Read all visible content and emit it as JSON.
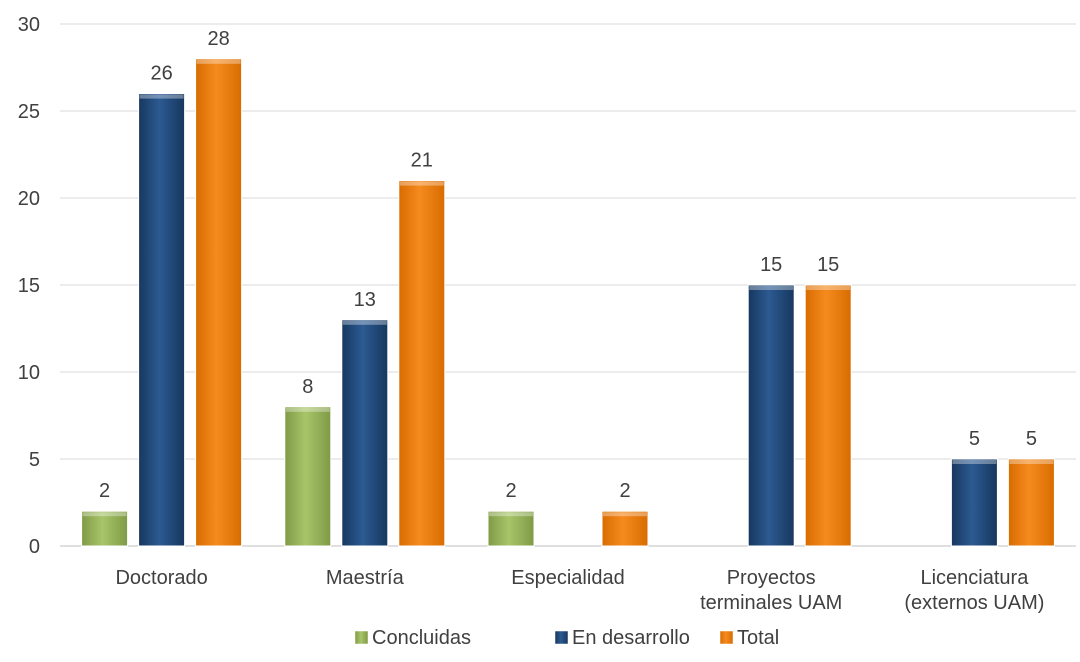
{
  "chart_data": {
    "type": "bar",
    "title": "",
    "xlabel": "",
    "ylabel": "",
    "ylim": [
      0,
      30
    ],
    "yticks": [
      0,
      5,
      10,
      15,
      20,
      25,
      30
    ],
    "grid": true,
    "legend_position": "bottom",
    "categories": [
      [
        "Doctorado"
      ],
      [
        "Maestría"
      ],
      [
        "Especialidad"
      ],
      [
        "Proyectos",
        "terminales UAM"
      ],
      [
        "Licenciatura",
        "(externos UAM)"
      ]
    ],
    "series": [
      {
        "name": "Concluidas",
        "color": "#9bbb59",
        "values": [
          2,
          8,
          2,
          null,
          null
        ]
      },
      {
        "name": "En desarrollo",
        "color": "#1f497d",
        "values": [
          26,
          13,
          null,
          15,
          5
        ]
      },
      {
        "name": "Total",
        "color": "#f07f09",
        "values": [
          28,
          21,
          2,
          15,
          5
        ]
      }
    ]
  }
}
